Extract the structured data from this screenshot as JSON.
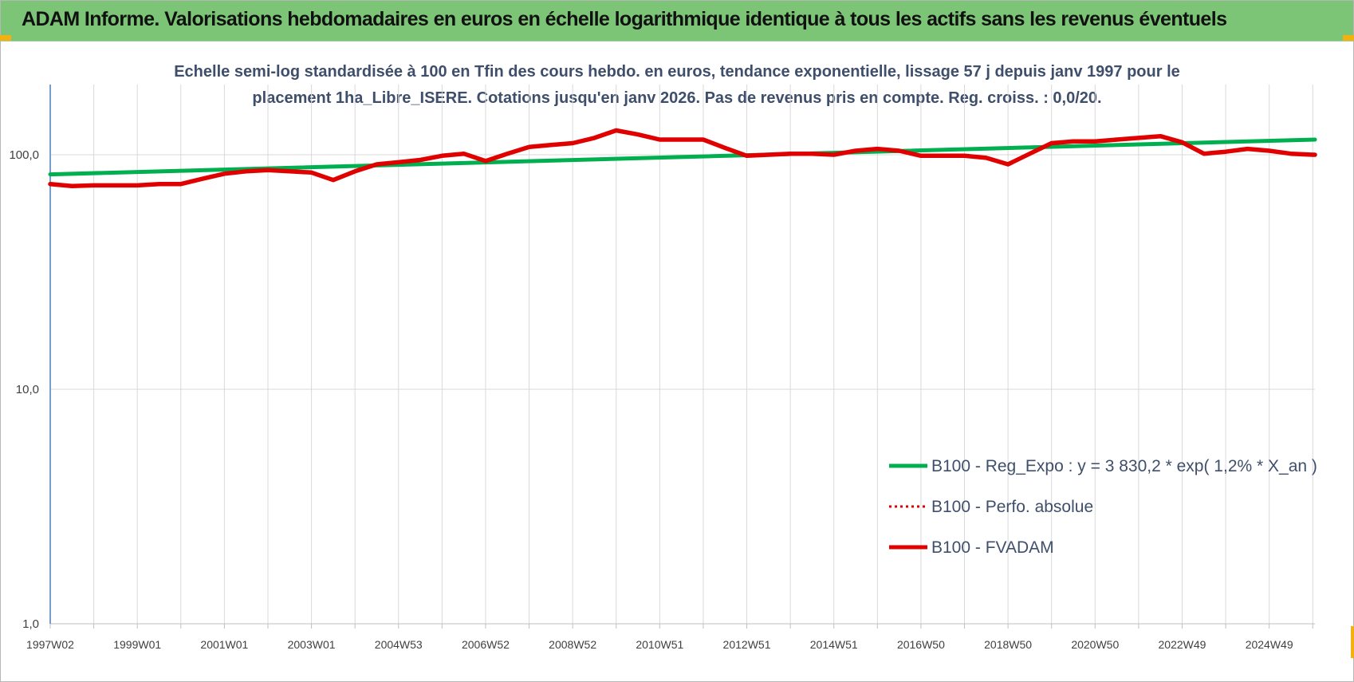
{
  "banner": {
    "title": "ADAM Informe. Valorisations hebdomadaires en euros en échelle logarithmique identique à tous les actifs sans les revenus éventuels"
  },
  "chart_data": {
    "type": "line",
    "title_lines": [
      "Echelle semi-log standardisée à 100 en Tfin des cours hebdo. en euros, tendance exponentielle, lissage 57 j depuis janv 1997 pour le",
      "placement 1ha_Libre_ISERE. Cotations jusqu'en janv 2026. Pas de revenus pris en compte. Reg. croiss. : 0,0/20."
    ],
    "y_scale": "log",
    "ylim": [
      1,
      200
    ],
    "y_ticks": [
      {
        "value": 1,
        "label": "1,0"
      },
      {
        "value": 10,
        "label": "10,0"
      },
      {
        "value": 100,
        "label": "100,0"
      }
    ],
    "x_range": [
      1997.0,
      2026.05
    ],
    "x_ticks": [
      {
        "x": 1997.0,
        "label": "1997W02"
      },
      {
        "x": 1999.0,
        "label": "1999W01"
      },
      {
        "x": 2001.0,
        "label": "2001W01"
      },
      {
        "x": 2003.0,
        "label": "2003W01"
      },
      {
        "x": 2005.0,
        "label": "2004W53"
      },
      {
        "x": 2007.0,
        "label": "2006W52"
      },
      {
        "x": 2009.0,
        "label": "2008W52"
      },
      {
        "x": 2011.0,
        "label": "2010W51"
      },
      {
        "x": 2013.0,
        "label": "2012W51"
      },
      {
        "x": 2015.0,
        "label": "2014W51"
      },
      {
        "x": 2017.0,
        "label": "2016W50"
      },
      {
        "x": 2019.0,
        "label": "2018W50"
      },
      {
        "x": 2021.0,
        "label": "2020W50"
      },
      {
        "x": 2023.0,
        "label": "2022W49"
      },
      {
        "x": 2025.0,
        "label": "2024W49"
      }
    ],
    "grid": "vertical",
    "legend_position": "bottom-right",
    "series": [
      {
        "name": "B100 - Reg_Expo : y = 3 830,2 * exp( 1,2% *  X_an )",
        "color": "#00b050",
        "style": "solid",
        "x": [
          1997.0,
          2026.05
        ],
        "y": [
          82.5,
          116.0
        ]
      },
      {
        "name": "B100 - Perfo. absolue",
        "color": "#e00000",
        "style": "dotted",
        "x": [],
        "y": []
      },
      {
        "name": "B100 - FVADAM",
        "color": "#e00000",
        "style": "solid",
        "x": [
          1997.0,
          1997.5,
          1998.0,
          1999.0,
          1999.5,
          2000.0,
          2000.5,
          2001.0,
          2001.5,
          2002.0,
          2002.5,
          2003.0,
          2003.5,
          2004.0,
          2004.5,
          2005.0,
          2005.5,
          2006.0,
          2006.5,
          2007.0,
          2007.5,
          2008.0,
          2008.5,
          2009.0,
          2009.5,
          2010.0,
          2010.5,
          2011.0,
          2011.5,
          2012.0,
          2012.5,
          2013.0,
          2013.5,
          2014.0,
          2014.5,
          2015.0,
          2015.5,
          2016.0,
          2016.5,
          2017.0,
          2017.5,
          2018.0,
          2018.5,
          2019.0,
          2019.5,
          2020.0,
          2020.5,
          2021.0,
          2021.5,
          2022.0,
          2022.5,
          2023.0,
          2023.5,
          2024.0,
          2024.5,
          2025.0,
          2025.5,
          2026.0,
          2026.05
        ],
        "y": [
          75.0,
          73.5,
          74.0,
          74.0,
          75.0,
          75.0,
          79.0,
          83.0,
          85.0,
          86.0,
          85.0,
          84.0,
          78.0,
          85.0,
          91.0,
          93.0,
          95.0,
          99.0,
          101.0,
          94.0,
          101.0,
          108.0,
          110.0,
          112.0,
          118.0,
          127.0,
          122.0,
          116.0,
          116.0,
          116.0,
          107.0,
          99.0,
          100.0,
          101.0,
          101.0,
          100.0,
          104.0,
          106.0,
          104.0,
          99.0,
          99.0,
          99.0,
          97.0,
          91.0,
          101.0,
          112.0,
          114.0,
          114.0,
          116.0,
          118.0,
          120.0,
          113.0,
          101.0,
          103.0,
          106.0,
          104.0,
          101.0,
          100.0,
          100.0
        ]
      }
    ]
  }
}
